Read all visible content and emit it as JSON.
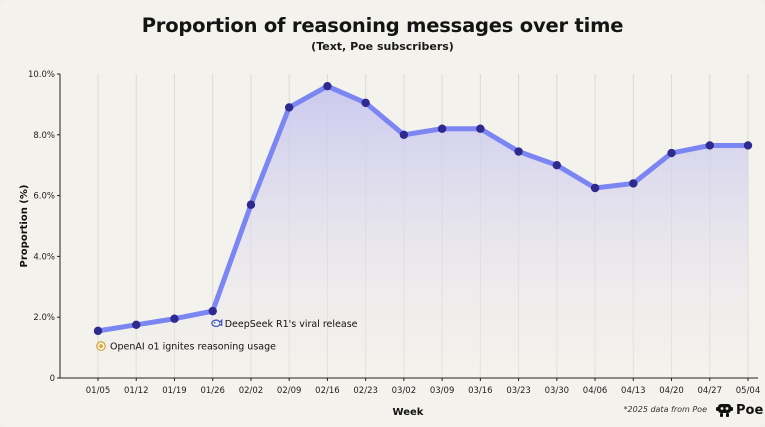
{
  "chart_data": {
    "type": "line",
    "title": "Proportion of reasoning messages over time",
    "subtitle": "(Text, Poe subscribers)",
    "xlabel": "Week",
    "ylabel": "Proportion (%)",
    "ylim": [
      0,
      10
    ],
    "y_ticks": [
      0,
      2,
      4,
      6,
      8,
      10
    ],
    "y_tick_labels": [
      "0",
      "2.0%",
      "4.0%",
      "6.0%",
      "8.0%",
      "10.0%"
    ],
    "categories": [
      "01/05",
      "01/12",
      "01/19",
      "01/26",
      "02/02",
      "02/09",
      "02/16",
      "02/23",
      "03/02",
      "03/09",
      "03/16",
      "03/23",
      "03/30",
      "04/06",
      "04/13",
      "04/20",
      "04/27",
      "05/04"
    ],
    "series": [
      {
        "values": [
          1.55,
          1.75,
          1.95,
          2.2,
          5.7,
          8.9,
          9.6,
          9.05,
          8.0,
          8.2,
          8.2,
          7.45,
          7.0,
          6.25,
          6.4,
          7.4,
          7.65,
          7.65
        ]
      }
    ],
    "grid": "vertical",
    "colors": {
      "line": "#7b86f2",
      "marker": "#2e2a8e",
      "area_top": "#c9c7ee",
      "area_bottom": "#f4f2ec"
    },
    "annotations": [
      {
        "text": "DeepSeek R1's viral release",
        "icon": "whale-icon",
        "x": "01/26",
        "y": 1.8
      },
      {
        "text": "OpenAI o1 ignites reasoning usage",
        "icon": "sparkle-icon",
        "x": "01/05",
        "y": 1.05
      }
    ]
  },
  "footnote": "*2025 data from Poe",
  "logo_text": "Poe"
}
